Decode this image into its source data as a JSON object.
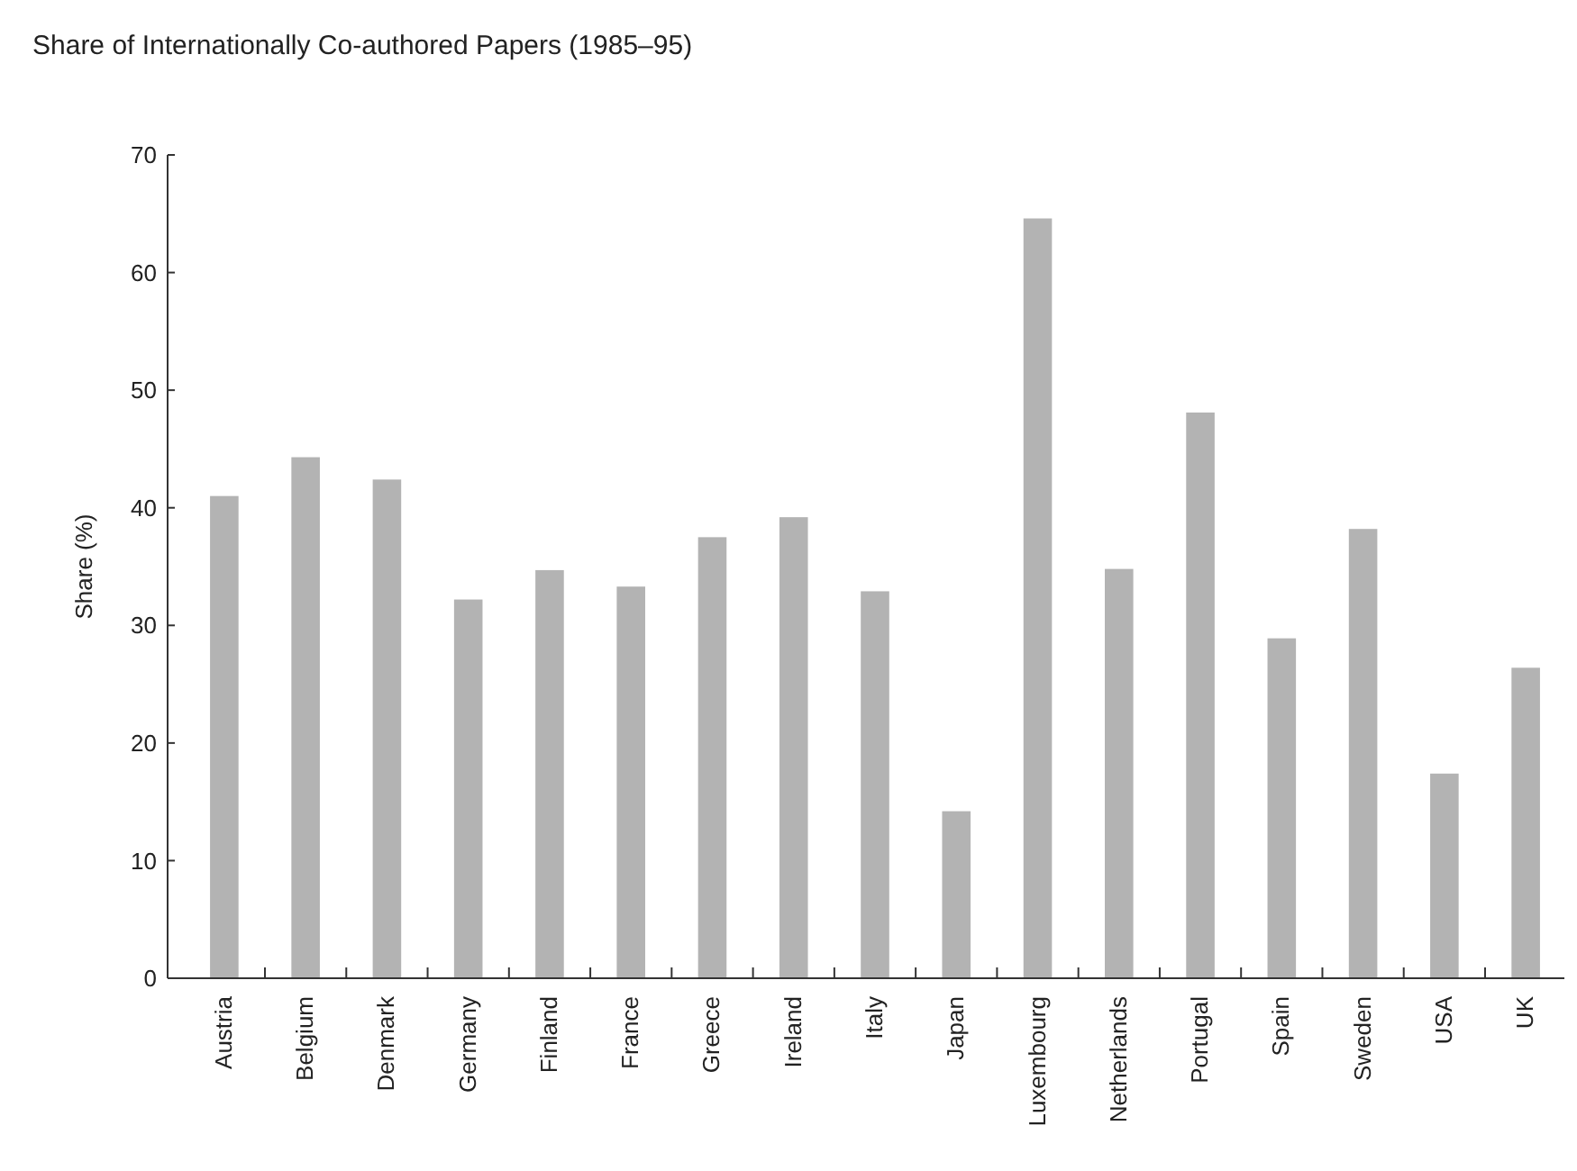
{
  "chart_data": {
    "type": "bar",
    "title": "Share of Internationally Co-authored Papers (1985–95)",
    "ylabel": "Share (%)",
    "categories": [
      "Austria",
      "Belgium",
      "Denmark",
      "Germany",
      "Finland",
      "France",
      "Greece",
      "Ireland",
      "Italy",
      "Japan",
      "Luxembourg",
      "Netherlands",
      "Portugal",
      "Spain",
      "Sweden",
      "USA",
      "UK"
    ],
    "values": [
      41,
      44.3,
      42.4,
      32.2,
      34.7,
      33.3,
      37.5,
      39.2,
      32.9,
      14.2,
      64.6,
      34.8,
      48.1,
      28.9,
      38.2,
      17.4,
      26.4
    ],
    "color": "#b3b3b3",
    "ylim": [
      0,
      70
    ],
    "yticks": [
      0,
      10,
      20,
      30,
      40,
      50,
      60,
      70
    ],
    "grid": false
  }
}
